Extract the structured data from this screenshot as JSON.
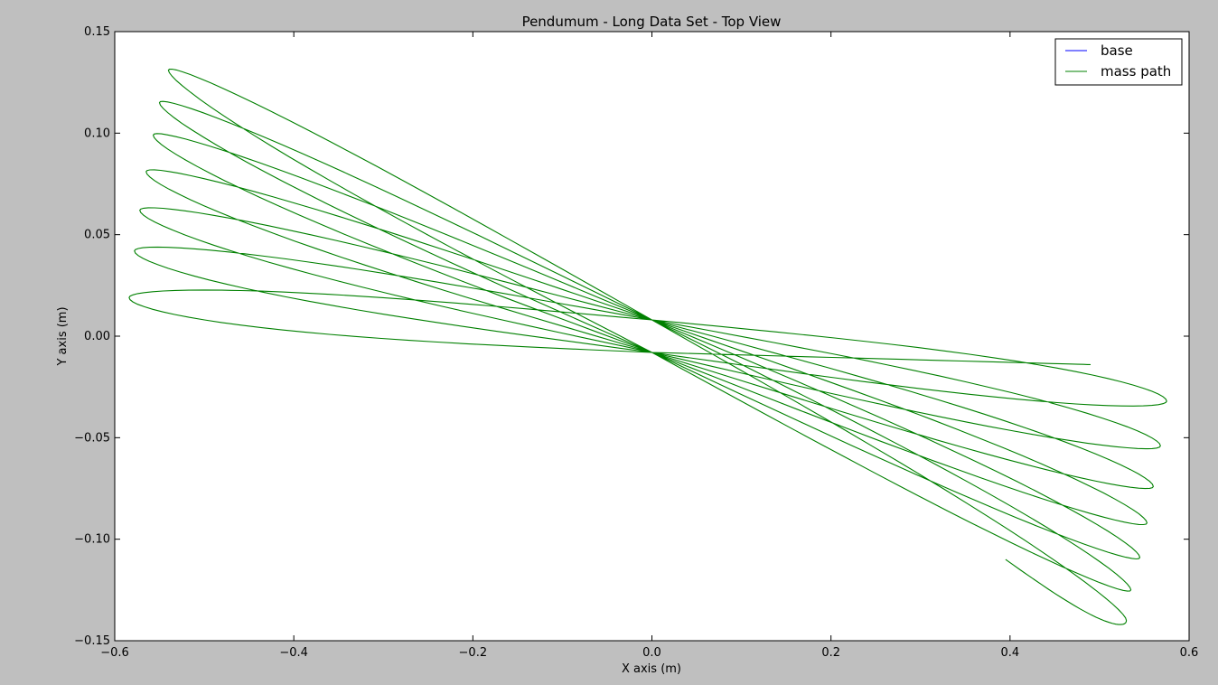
{
  "chart_data": {
    "type": "line",
    "title": "Pendumum - Long Data Set - Top View",
    "xlabel": "X axis (m)",
    "ylabel": "Y axis (m)",
    "xlim": [
      -0.6,
      0.6
    ],
    "ylim": [
      -0.15,
      0.15
    ],
    "xticks": [
      -0.6,
      -0.4,
      -0.2,
      0.0,
      0.2,
      0.4,
      0.6
    ],
    "xtick_labels": [
      "−0.6",
      "−0.4",
      "−0.2",
      "0.0",
      "0.2",
      "0.4",
      "0.6"
    ],
    "yticks": [
      0.15,
      0.1,
      0.05,
      0.0,
      -0.05,
      -0.1,
      -0.15
    ],
    "ytick_labels": [
      "0.15",
      "0.10",
      "0.05",
      "0.00",
      "−0.05",
      "−0.10",
      "−0.15"
    ],
    "grid": false,
    "legend_position": "top-right",
    "series": [
      {
        "name": "base",
        "color": "#0000ff",
        "x": [],
        "y": []
      },
      {
        "name": "mass path",
        "color": "#008000",
        "start": [
          0.395,
          -0.11
        ],
        "end": [
          0.49,
          -0.014
        ],
        "lobes": [
          {
            "tip": [
              0.53,
              -0.14
            ],
            "cross": 0.008
          },
          {
            "tip": [
              -0.54,
              0.131
            ],
            "cross": -0.008
          },
          {
            "tip": [
              0.535,
              -0.125
            ],
            "cross": 0.008
          },
          {
            "tip": [
              -0.55,
              0.115
            ],
            "cross": -0.008
          },
          {
            "tip": [
              0.545,
              -0.109
            ],
            "cross": 0.008
          },
          {
            "tip": [
              -0.557,
              0.099
            ],
            "cross": -0.008
          },
          {
            "tip": [
              0.553,
              -0.092
            ],
            "cross": 0.008
          },
          {
            "tip": [
              -0.565,
              0.081
            ],
            "cross": -0.008
          },
          {
            "tip": [
              0.56,
              -0.074
            ],
            "cross": 0.008
          },
          {
            "tip": [
              -0.572,
              0.062
            ],
            "cross": -0.008
          },
          {
            "tip": [
              0.568,
              -0.054
            ],
            "cross": 0.008
          },
          {
            "tip": [
              -0.578,
              0.042
            ],
            "cross": -0.008
          },
          {
            "tip": [
              0.575,
              -0.032
            ],
            "cross": 0.008
          },
          {
            "tip": [
              -0.584,
              0.019
            ],
            "cross": -0.008
          }
        ]
      }
    ]
  }
}
